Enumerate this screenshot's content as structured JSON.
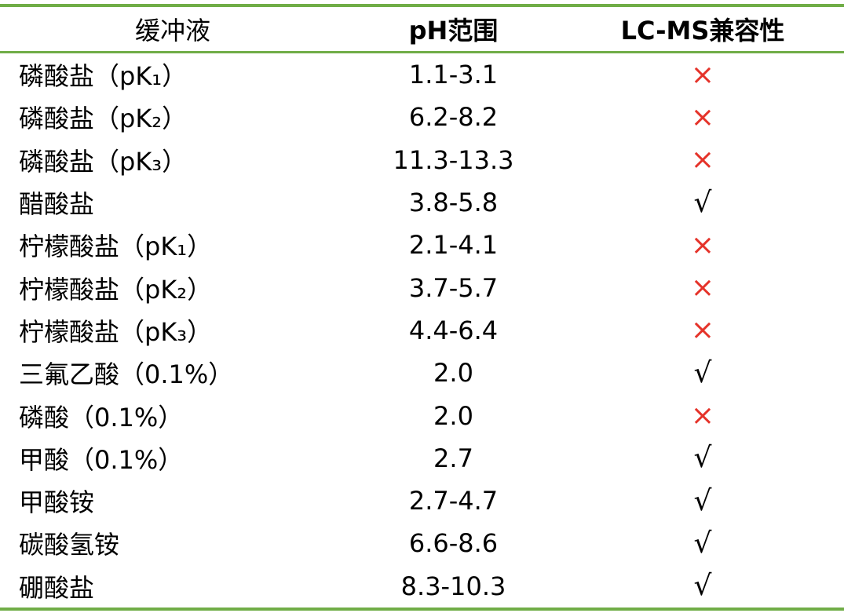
{
  "table": {
    "header": [
      "缓冲液",
      "pH范围",
      "LC-MS兼容性"
    ],
    "rows": [
      [
        "磷酸盐（pK₁）",
        "1.1-3.1",
        "×"
      ],
      [
        "磷酸盐（pK₂）",
        "6.2-8.2",
        "×"
      ],
      [
        "磷酸盐（pK₃）",
        "11.3-13.3",
        "×"
      ],
      [
        "醋酸盐",
        "3.8-5.8",
        "√"
      ],
      [
        "柠檬酸盐（pK₁）",
        "2.1-4.1",
        "×"
      ],
      [
        "柠檬酸盐（pK₂）",
        "3.7-5.7",
        "×"
      ],
      [
        "柠檬酸盐（pK₃）",
        "4.4-6.4",
        "×"
      ],
      [
        "三氟乙酸（0.1%）",
        "2.0",
        "√"
      ],
      [
        "磷酸（0.1%）",
        "2.0",
        "×"
      ],
      [
        "甲酸（0.1%）",
        "2.7",
        "√"
      ],
      [
        "甲酸铵",
        "2.7-4.7",
        "√"
      ],
      [
        "碳酸氢铵",
        "6.6-8.6",
        "√"
      ],
      [
        "硼酸盐",
        "8.3-10.3",
        "√"
      ]
    ],
    "symbol_colors": {
      "×": "#e5332a",
      "√": "#000000"
    },
    "rule_color": "#70ad47"
  }
}
